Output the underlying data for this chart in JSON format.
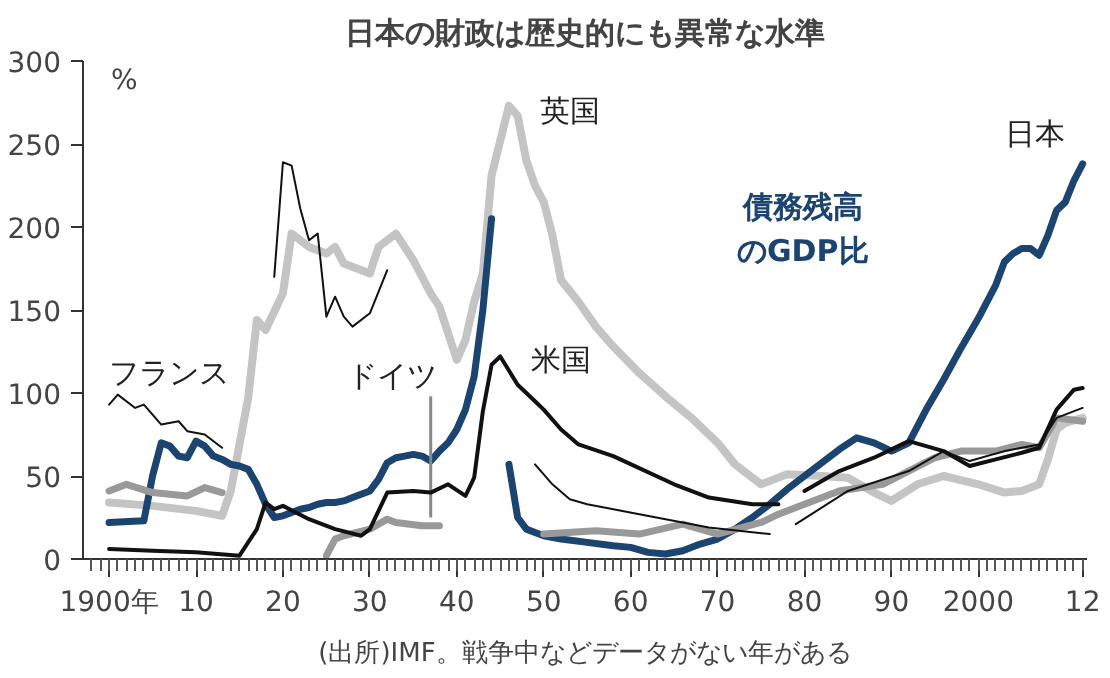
{
  "chart_data": {
    "type": "line",
    "title": "日本の財政は歴史的にも異常な水準",
    "subtitle": "債務残高のGDP比",
    "ylabel": "%",
    "annotations": [
      "(出所)IMF。戦争中などデータがない年がある"
    ],
    "xlim": [
      1897,
      2012.5
    ],
    "ylim": [
      0,
      300
    ],
    "xticks": [
      {
        "value": 1900,
        "label": "1900年"
      },
      {
        "value": 1910,
        "label": "10"
      },
      {
        "value": 1920,
        "label": "20"
      },
      {
        "value": 1930,
        "label": "30"
      },
      {
        "value": 1940,
        "label": "40"
      },
      {
        "value": 1950,
        "label": "50"
      },
      {
        "value": 1960,
        "label": "60"
      },
      {
        "value": 1970,
        "label": "70"
      },
      {
        "value": 1980,
        "label": "80"
      },
      {
        "value": 1990,
        "label": "90"
      },
      {
        "value": 2000,
        "label": "2000"
      },
      {
        "value": 2012,
        "label": "12"
      }
    ],
    "yticks": [
      0,
      50,
      100,
      150,
      200,
      250,
      300
    ],
    "grid": false,
    "legend": false,
    "marker": "none",
    "line_style": "solid",
    "series": [
      {
        "name": "日本",
        "color": "#1b4470",
        "x": [
          1900,
          1904,
          1905,
          1906,
          1907,
          1908,
          1909,
          1910,
          1911,
          1912,
          1913,
          1914,
          1915,
          1916,
          1917,
          1918,
          1919,
          1920,
          1921,
          1922,
          1923,
          1924,
          1925,
          1926,
          1927,
          1928,
          1929,
          1930,
          1931,
          1932,
          1933,
          1934,
          1935,
          1936,
          1937,
          1938,
          1939,
          1940,
          1941,
          1942,
          1943,
          1944,
          1945,
          1946,
          1947,
          1948,
          1949,
          1950,
          1952,
          1955,
          1958,
          1960,
          1962,
          1964,
          1966,
          1968,
          1970,
          1972,
          1974,
          1976,
          1978,
          1980,
          1982,
          1984,
          1986,
          1988,
          1990,
          1992,
          1994,
          1996,
          1998,
          2000,
          2002,
          2003,
          2004,
          2005,
          2006,
          2007,
          2008,
          2009,
          2010,
          2011,
          2012
        ],
        "values": [
          22,
          23,
          50,
          70,
          68,
          62,
          61,
          71,
          68,
          62,
          60,
          57,
          56,
          54,
          45,
          33,
          25,
          26,
          28,
          30,
          31,
          33,
          34,
          34,
          35,
          37,
          39,
          41,
          48,
          58,
          61,
          62,
          63,
          62,
          59,
          65,
          70,
          78,
          90,
          110,
          150,
          205,
          null,
          57,
          25,
          18,
          16,
          14,
          12,
          10,
          8,
          7,
          4,
          3,
          5,
          9,
          12,
          18,
          25,
          33,
          42,
          50,
          58,
          66,
          73,
          70,
          65,
          70,
          90,
          108,
          127,
          145,
          165,
          179,
          184,
          187,
          187,
          183,
          195,
          210,
          215,
          228,
          238
        ]
      },
      {
        "name": "英国",
        "color": "#c4c4c4",
        "x": [
          1900,
          1905,
          1910,
          1913,
          1914,
          1916,
          1917,
          1918,
          1920,
          1921,
          1923,
          1925,
          1926,
          1927,
          1930,
          1931,
          1933,
          1935,
          1937,
          1938,
          1940,
          1941,
          1942,
          1943,
          1944,
          1946,
          1947,
          1948,
          1949,
          1950,
          1951,
          1952,
          1954,
          1956,
          1958,
          1961,
          1964,
          1967,
          1970,
          1972,
          1975,
          1978,
          1982,
          1985,
          1988,
          1990,
          1993,
          1996,
          2000,
          2003,
          2005,
          2007,
          2008,
          2009,
          2010,
          2012
        ],
        "values": [
          34,
          32,
          29,
          26,
          41,
          97,
          144,
          138,
          160,
          196,
          188,
          184,
          188,
          178,
          172,
          188,
          196,
          180,
          160,
          152,
          120,
          132,
          155,
          172,
          231,
          273,
          267,
          240,
          225,
          215,
          195,
          168,
          155,
          140,
          128,
          112,
          98,
          85,
          70,
          57,
          45,
          51,
          50,
          49,
          40,
          35,
          45,
          50,
          45,
          40,
          41,
          45,
          60,
          78,
          82,
          85
        ]
      },
      {
        "name": "米国",
        "color": "#111111",
        "x": [
          1900,
          1905,
          1910,
          1915,
          1917,
          1918,
          1919,
          1920,
          1923,
          1926,
          1929,
          1930,
          1932,
          1935,
          1937,
          1939,
          1941,
          1942,
          1943,
          1944,
          1945,
          1947,
          1949,
          1950,
          1952,
          1954,
          1958,
          1965,
          1969,
          1974,
          1977,
          1978,
          1980,
          1984,
          1988,
          1992,
          1996,
          1999,
          2002,
          2005,
          2007,
          2009,
          2011,
          2012
        ],
        "values": [
          6,
          5,
          4,
          2,
          18,
          34,
          30,
          32,
          24,
          18,
          14,
          18,
          40,
          41,
          40,
          45,
          38,
          49,
          89,
          117,
          122,
          105,
          95,
          90,
          78,
          69,
          62,
          45,
          37,
          33,
          33,
          null,
          41,
          53,
          61,
          71,
          65,
          56,
          60,
          64,
          67,
          90,
          102,
          103
        ]
      },
      {
        "name": "フランス",
        "color": "#111111",
        "x": [
          1900,
          1901,
          1903,
          1904,
          1906,
          1908,
          1909,
          1911,
          1913,
          1914,
          1919,
          1920,
          1921,
          1922,
          1923,
          1924,
          1925,
          1926,
          1927,
          1928,
          1930,
          1932,
          1933,
          1949,
          1951,
          1953,
          1955,
          1961,
          1969,
          1976,
          1977,
          1979,
          1985,
          1992,
          1996,
          1999,
          2003,
          2007,
          2009,
          2012
        ],
        "values": [
          93,
          99,
          91,
          93,
          81,
          83,
          77,
          75,
          67,
          null,
          170,
          239,
          237,
          211,
          192,
          196,
          146,
          158,
          146,
          140,
          148,
          174,
          null,
          57,
          45,
          36,
          33,
          27,
          19,
          15,
          null,
          21,
          41,
          53,
          65,
          59,
          65,
          69,
          85,
          91
        ]
      },
      {
        "name": "ドイツ",
        "color": "#999999",
        "x": [
          1900,
          1902,
          1905,
          1909,
          1911,
          1913,
          1914,
          1925,
          1926,
          1927,
          1930,
          1932,
          1933,
          1936,
          1938,
          1939,
          1950,
          1956,
          1961,
          1966,
          1970,
          1975,
          1977,
          1984,
          1989,
          1995,
          1998,
          2002,
          2005,
          2007,
          2009,
          2012
        ],
        "values": [
          41,
          45,
          40,
          38,
          43,
          40,
          null,
          2,
          12,
          14,
          18,
          24,
          22,
          20,
          20,
          null,
          15,
          17,
          15,
          21,
          15,
          22,
          27,
          41,
          45,
          61,
          65,
          65,
          69,
          67,
          85,
          83
        ]
      }
    ]
  }
}
